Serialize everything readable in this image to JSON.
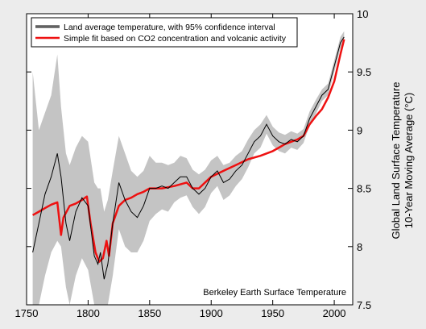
{
  "chart_data": {
    "type": "line",
    "xlim": [
      1750,
      2015
    ],
    "ylim": [
      7.5,
      10
    ],
    "x_ticks": [
      1750,
      1800,
      1850,
      1900,
      1950,
      2000
    ],
    "y_ticks": [
      7.5,
      8,
      8.5,
      9,
      9.5,
      10
    ],
    "x_tick_labels": [
      "1750",
      "1800",
      "1850",
      "1900",
      "1950",
      "2000"
    ],
    "y_tick_labels": [
      "7.5",
      "8",
      "8.5",
      "9",
      "9.5",
      "10"
    ],
    "ylabel_line1": "Global Land Surface Temperature",
    "ylabel_line2": "10-Year Moving Average (°C)",
    "annotation": "Berkeley Earth Surface Temperature",
    "legend_position": "top-left",
    "grid": false,
    "colors": {
      "observed": "#000000",
      "confidence_band": "#c4c4c4",
      "fit": "#ee1111",
      "background": "#ececec",
      "plot_area": "#ffffff"
    },
    "series": [
      {
        "name": "Land average temperature, with 95% confidence interval",
        "x": [
          1755,
          1760,
          1765,
          1770,
          1775,
          1778,
          1782,
          1785,
          1790,
          1795,
          1800,
          1805,
          1808,
          1810,
          1813,
          1816,
          1820,
          1825,
          1830,
          1835,
          1840,
          1845,
          1850,
          1855,
          1860,
          1865,
          1870,
          1875,
          1880,
          1885,
          1890,
          1895,
          1900,
          1905,
          1910,
          1915,
          1920,
          1925,
          1930,
          1935,
          1940,
          1945,
          1950,
          1955,
          1960,
          1965,
          1970,
          1975,
          1980,
          1985,
          1990,
          1995,
          2000,
          2005,
          2008
        ],
        "values": [
          7.95,
          8.2,
          8.45,
          8.6,
          8.8,
          8.6,
          8.2,
          8.05,
          8.3,
          8.42,
          8.35,
          7.92,
          7.85,
          7.95,
          7.72,
          7.85,
          8.2,
          8.55,
          8.4,
          8.3,
          8.25,
          8.35,
          8.5,
          8.5,
          8.52,
          8.5,
          8.55,
          8.6,
          8.6,
          8.5,
          8.45,
          8.5,
          8.6,
          8.65,
          8.55,
          8.58,
          8.65,
          8.7,
          8.8,
          8.9,
          8.95,
          9.05,
          8.95,
          8.9,
          8.88,
          8.92,
          8.9,
          8.95,
          9.1,
          9.2,
          9.3,
          9.35,
          9.55,
          9.75,
          9.8
        ],
        "ci_upper": [
          9.5,
          9.0,
          9.15,
          9.3,
          9.65,
          9.2,
          8.8,
          8.7,
          8.85,
          8.95,
          8.9,
          8.55,
          8.5,
          8.5,
          8.3,
          8.4,
          8.65,
          8.95,
          8.8,
          8.65,
          8.6,
          8.65,
          8.78,
          8.72,
          8.72,
          8.7,
          8.72,
          8.78,
          8.76,
          8.66,
          8.62,
          8.66,
          8.74,
          8.78,
          8.7,
          8.72,
          8.78,
          8.82,
          8.92,
          9.0,
          9.05,
          9.13,
          9.03,
          8.98,
          8.96,
          8.99,
          8.97,
          9.01,
          9.16,
          9.26,
          9.35,
          9.4,
          9.6,
          9.8,
          9.85
        ],
        "ci_lower": [
          7.5,
          7.5,
          7.75,
          7.95,
          8.05,
          8.0,
          7.65,
          7.5,
          7.75,
          7.9,
          7.8,
          7.5,
          7.5,
          7.5,
          7.5,
          7.5,
          7.75,
          8.15,
          8.0,
          7.95,
          7.95,
          8.05,
          8.22,
          8.28,
          8.32,
          8.3,
          8.38,
          8.42,
          8.44,
          8.34,
          8.28,
          8.34,
          8.46,
          8.52,
          8.4,
          8.44,
          8.52,
          8.58,
          8.68,
          8.8,
          8.85,
          8.97,
          8.87,
          8.82,
          8.8,
          8.85,
          8.83,
          8.89,
          9.04,
          9.14,
          9.25,
          9.3,
          9.5,
          9.7,
          9.75
        ]
      },
      {
        "name": "Simple fit based on CO2 concentration and volcanic activity",
        "x": [
          1755,
          1760,
          1765,
          1770,
          1775,
          1778,
          1780,
          1785,
          1790,
          1795,
          1799,
          1802,
          1806,
          1809,
          1812,
          1815,
          1817,
          1820,
          1825,
          1830,
          1835,
          1840,
          1845,
          1850,
          1860,
          1870,
          1880,
          1885,
          1890,
          1900,
          1910,
          1920,
          1930,
          1940,
          1950,
          1955,
          1960,
          1965,
          1970,
          1975,
          1980,
          1985,
          1990,
          1995,
          2000,
          2005,
          2008
        ],
        "values": [
          8.27,
          8.3,
          8.33,
          8.36,
          8.38,
          8.1,
          8.25,
          8.35,
          8.37,
          8.4,
          8.43,
          8.2,
          7.95,
          7.87,
          7.9,
          8.05,
          7.92,
          8.2,
          8.35,
          8.4,
          8.42,
          8.45,
          8.47,
          8.5,
          8.5,
          8.52,
          8.55,
          8.5,
          8.5,
          8.6,
          8.65,
          8.7,
          8.75,
          8.78,
          8.82,
          8.85,
          8.88,
          8.9,
          8.92,
          8.95,
          9.05,
          9.12,
          9.18,
          9.28,
          9.42,
          9.65,
          9.78
        ]
      }
    ]
  }
}
